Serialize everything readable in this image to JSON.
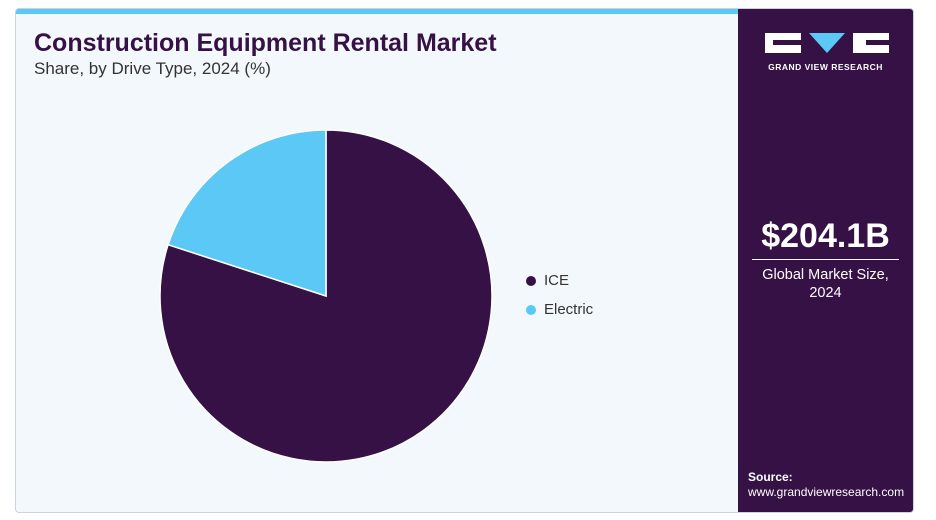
{
  "chart_data": {
    "type": "pie",
    "title": "Construction Equipment Rental Market",
    "subtitle": "Share, by Drive Type, 2024 (%)",
    "categories": [
      "ICE",
      "Electric"
    ],
    "values": [
      80,
      20
    ],
    "colors": [
      "#351145",
      "#5bc8f5"
    ],
    "legend": "right"
  },
  "sidebar": {
    "brand": "GRAND VIEW RESEARCH",
    "market_size": "$204.1B",
    "market_size_label": "Global Market Size, 2024",
    "source_label": "Source:",
    "source_url": "www.grandviewresearch.com"
  }
}
